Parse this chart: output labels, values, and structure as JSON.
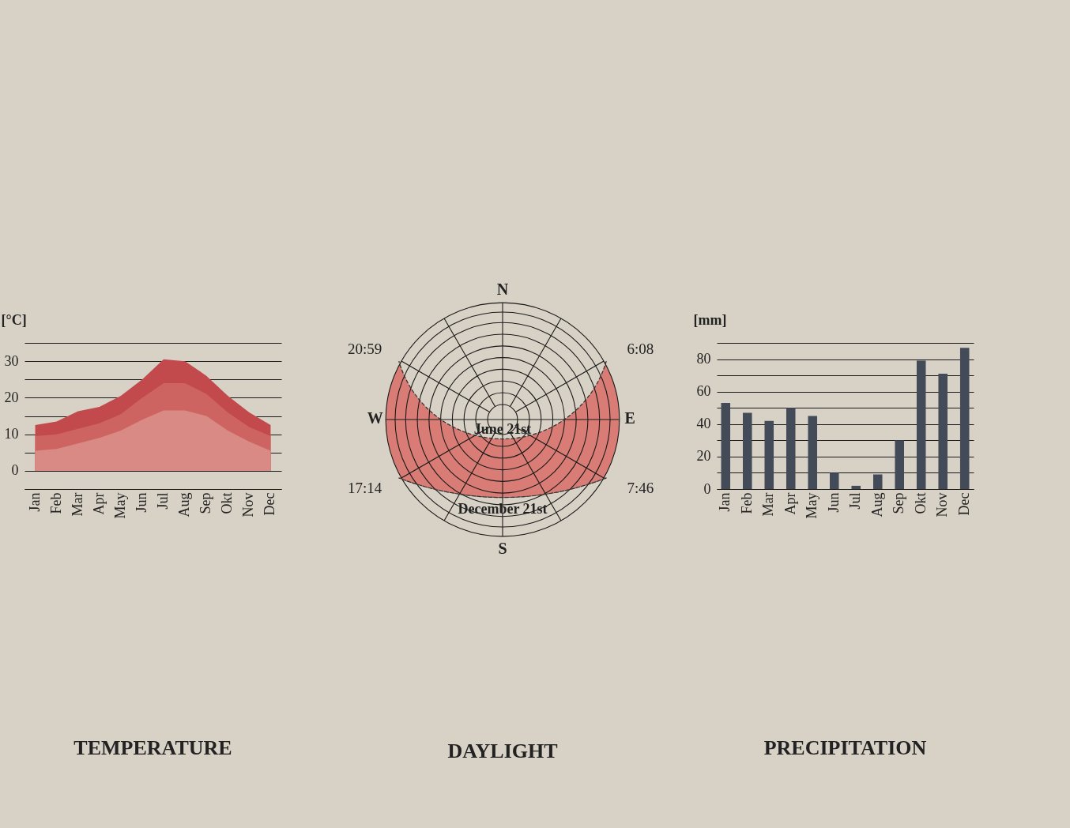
{
  "chart_data": [
    {
      "type": "area",
      "title": "TEMPERATURE",
      "ylabel": "[°C]",
      "categories": [
        "Jan",
        "Feb",
        "Mar",
        "Apr",
        "May",
        "Jun",
        "Jul",
        "Aug",
        "Sep",
        "Okt",
        "Nov",
        "Dec"
      ],
      "series": [
        {
          "color": "#c24a4c",
          "values": [
            12.5,
            13.5,
            16.3,
            17.5,
            20.5,
            25,
            30.5,
            30,
            26,
            20.5,
            16,
            12.5
          ]
        },
        {
          "color": "#cd6462",
          "values": [
            9.5,
            10,
            11.5,
            13,
            15.5,
            20,
            24,
            24,
            21,
            16,
            12,
            9.5
          ]
        },
        {
          "color": "#da8a84",
          "values": [
            5.5,
            6,
            7.5,
            9,
            11,
            14,
            16.5,
            16.5,
            15,
            11,
            8,
            5.5
          ]
        }
      ],
      "ylim": [
        -5,
        35
      ],
      "yticks": [
        {
          "value": -5,
          "label": null
        },
        0,
        {
          "value": 5,
          "label": null
        },
        10,
        {
          "value": 15,
          "label": null
        },
        20,
        {
          "value": 25,
          "label": null
        },
        30,
        {
          "value": 35,
          "label": null
        }
      ],
      "grid": "y",
      "legend": false
    },
    {
      "type": "other",
      "title": "DAYLIGHT",
      "annotations": [
        "N",
        "E",
        "S",
        "W",
        "6:08",
        "7:46",
        "17:14",
        "20:59",
        "June 21st",
        "December 21st"
      ]
    },
    {
      "type": "bar",
      "title": "PRECIPITATION",
      "ylabel": "[mm]",
      "categories": [
        "Jan",
        "Feb",
        "Mar",
        "Apr",
        "May",
        "Jun",
        "Jul",
        "Aug",
        "Sep",
        "Okt",
        "Nov",
        "Dec"
      ],
      "values": [
        53,
        47,
        42,
        50,
        45,
        10,
        2,
        9,
        30,
        79,
        71,
        87
      ],
      "color": "#434a58",
      "ylim": [
        0,
        90
      ],
      "yticks": [
        0,
        {
          "value": 10,
          "label": null
        },
        20,
        {
          "value": 30,
          "label": null
        },
        40,
        {
          "value": 50,
          "label": null
        },
        60,
        {
          "value": 70,
          "label": null
        },
        80,
        {
          "value": 90,
          "label": null
        }
      ],
      "grid": "y",
      "legend": false
    }
  ]
}
